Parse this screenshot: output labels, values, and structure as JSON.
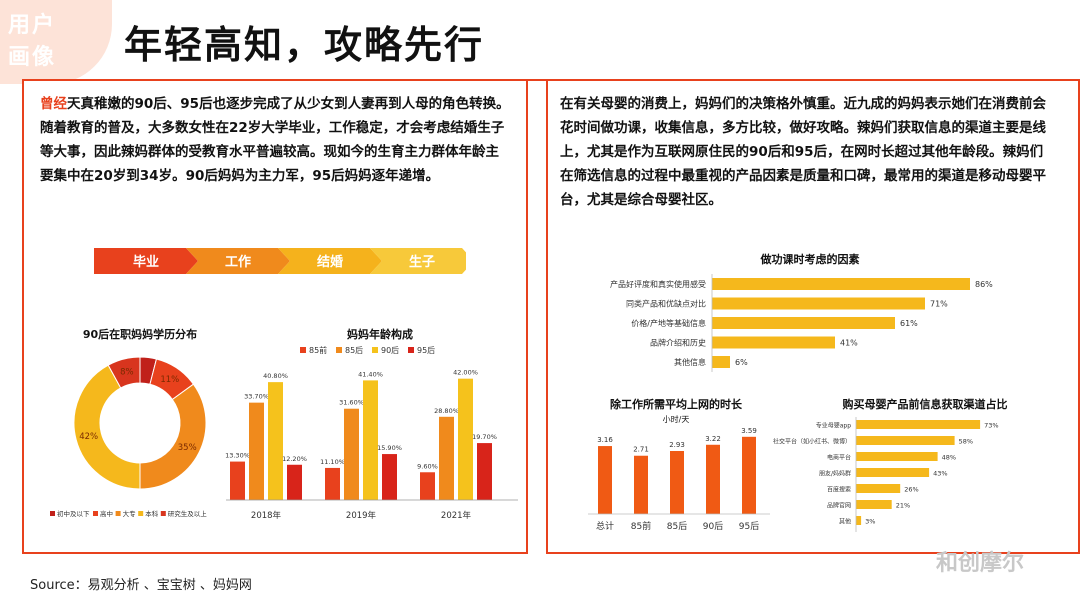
{
  "header": {
    "tag_line1": "用户",
    "tag_line2": "画像",
    "title": "年轻高知，攻略先行"
  },
  "left_text": {
    "lead": "曾经",
    "body": "天真稚嫩的90后、95后也逐步完成了从少女到人妻再到人母的角色转换。随着教育的普及，大多数女性在22岁大学毕业，工作稳定，才会考虑结婚生子等大事，因此辣妈群体的受教育水平普遍较高。现如今的生育主力群体年龄主要集中在20岁到34岁。90后妈妈为主力军，95后妈妈逐年递增。"
  },
  "right_text": {
    "body": "在有关母婴的消费上，妈妈们的决策格外慎重。近九成的妈妈表示她们在消费前会花时间做功课，收集信息，多方比较，做好攻略。辣妈们获取信息的渠道主要是线上，尤其是作为互联网原住民的90后和95后，在网时长超过其他年龄段。辣妈们在筛选信息的过程中最重视的产品因素是质量和口碑，最常用的渠道是移动母婴平台，尤其是综合母婴社区。"
  },
  "stages": [
    "毕业",
    "工作",
    "结婚",
    "生子"
  ],
  "stage_colors": [
    "#e8411d",
    "#f08a1c",
    "#f5b21c",
    "#f7c93a"
  ],
  "source": "Source：易观分析 、宝宝树 、妈妈网",
  "watermark_right": "和创摩尔",
  "chart_data": [
    {
      "type": "pie",
      "title": "90后在职妈妈学历分布",
      "categories": [
        "初中及以下",
        "高中",
        "大专",
        "本科",
        "研究生及以上"
      ],
      "values": [
        4,
        11,
        35,
        42,
        8
      ],
      "value_labels": [
        "",
        "11%",
        "35%",
        "42%",
        "8%"
      ],
      "colors": [
        "#c0201a",
        "#e8411d",
        "#f08a1c",
        "#f5b81c",
        "#d8351e"
      ],
      "legend": "bottom"
    },
    {
      "type": "bar",
      "title": "妈妈年龄构成",
      "categories": [
        "2018年",
        "2019年",
        "2021年"
      ],
      "series": [
        {
          "name": "85前",
          "values": [
            13.3,
            11.1,
            9.6
          ],
          "labels": [
            "13.30%",
            "11.10%",
            "9.60%"
          ],
          "color": "#e8411d"
        },
        {
          "name": "85后",
          "values": [
            33.7,
            31.6,
            28.8
          ],
          "labels": [
            "33.70%",
            "31.60%",
            "28.80%"
          ],
          "color": "#f08a1c"
        },
        {
          "name": "90后",
          "values": [
            40.8,
            41.4,
            42.0
          ],
          "labels": [
            "40.80%",
            "41.40%",
            "42.00%"
          ],
          "color": "#f5c21c"
        },
        {
          "name": "95后",
          "values": [
            12.2,
            15.9,
            19.7
          ],
          "labels": [
            "12.20%",
            "15.90%",
            "19.70%"
          ],
          "color": "#d8241a"
        }
      ],
      "ylim": [
        0,
        45
      ],
      "legend": "top"
    },
    {
      "type": "bar",
      "orientation": "horizontal",
      "title": "做功课时考虑的因素",
      "categories": [
        "产品好评度和真实使用感受",
        "同类产品和优缺点对比",
        "价格/产地等基础信息",
        "品牌介绍和历史",
        "其他信息"
      ],
      "values": [
        86,
        71,
        61,
        41,
        6
      ],
      "value_labels": [
        "86%",
        "71%",
        "61%",
        "41%",
        "6%"
      ],
      "color": "#f5b81c",
      "xlim": [
        0,
        100
      ]
    },
    {
      "type": "bar",
      "title": "除工作所需平均上网的时长",
      "subtitle": "小时/天",
      "categories": [
        "总计",
        "85前",
        "85后",
        "90后",
        "95后"
      ],
      "values": [
        3.16,
        2.71,
        2.93,
        3.22,
        3.59
      ],
      "value_labels": [
        "3.16",
        "2.71",
        "2.93",
        "3.22",
        "3.59"
      ],
      "color": "#f05a14",
      "ylim": [
        0,
        4
      ]
    },
    {
      "type": "bar",
      "orientation": "horizontal",
      "title": "购买母婴产品前信息获取渠道占比",
      "categories": [
        "专业母婴app",
        "社交平台（如小红书、微博）",
        "电商平台",
        "朋友/妈妈群",
        "百度搜索",
        "品牌官网",
        "其他"
      ],
      "values": [
        73,
        58,
        48,
        43,
        26,
        21,
        3
      ],
      "value_labels": [
        "73%",
        "58%",
        "48%",
        "43%",
        "26%",
        "21%",
        "3%"
      ],
      "color": "#f5b81c",
      "xlim": [
        0,
        100
      ]
    }
  ]
}
